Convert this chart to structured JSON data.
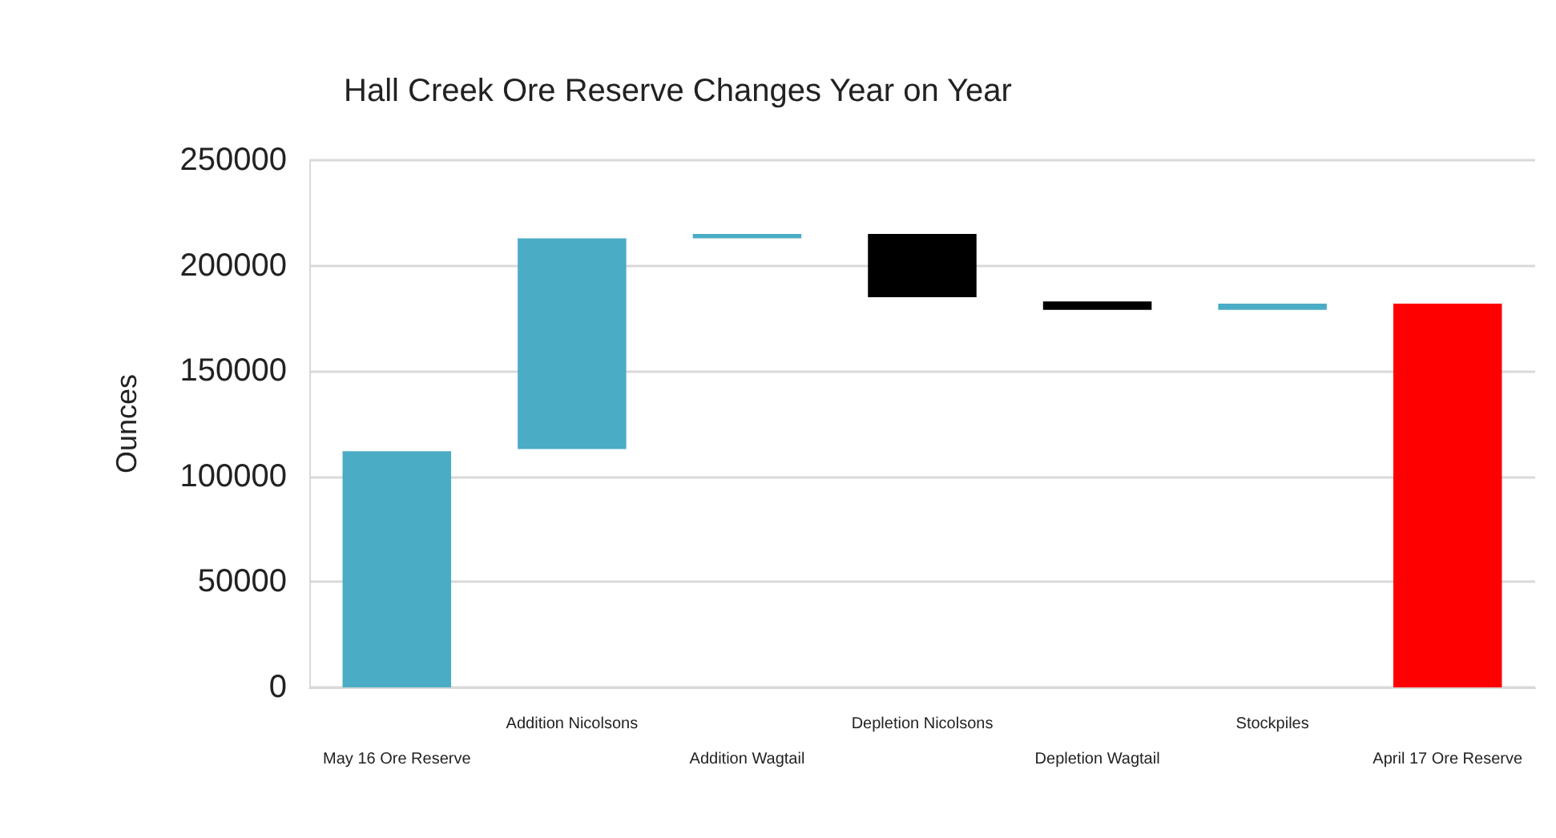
{
  "chart_data": {
    "type": "bar",
    "title": "Hall Creek Ore Reserve Changes Year on Year",
    "ylabel": "Ounces",
    "categories": [
      "May 16 Ore Reserve",
      "Addition Nicolsons",
      "Addition Wagtail",
      "Depletion Nicolsons",
      "Depletion Wagtail",
      "Stockpiles",
      "April 17 Ore Reserve"
    ],
    "values": [
      112000,
      100000,
      2000,
      30000,
      4000,
      3000,
      182000
    ],
    "base": [
      0,
      113000,
      213000,
      185000,
      179000,
      179000,
      0
    ],
    "colors": [
      "#4bacc6",
      "#4bacc6",
      "#4bacc6",
      "#000000",
      "#000000",
      "#4bacc6",
      "#ff0000"
    ],
    "ylim": [
      0,
      250000
    ],
    "yticks": [
      0,
      50000,
      100000,
      150000,
      200000,
      250000
    ],
    "grid": "y"
  }
}
